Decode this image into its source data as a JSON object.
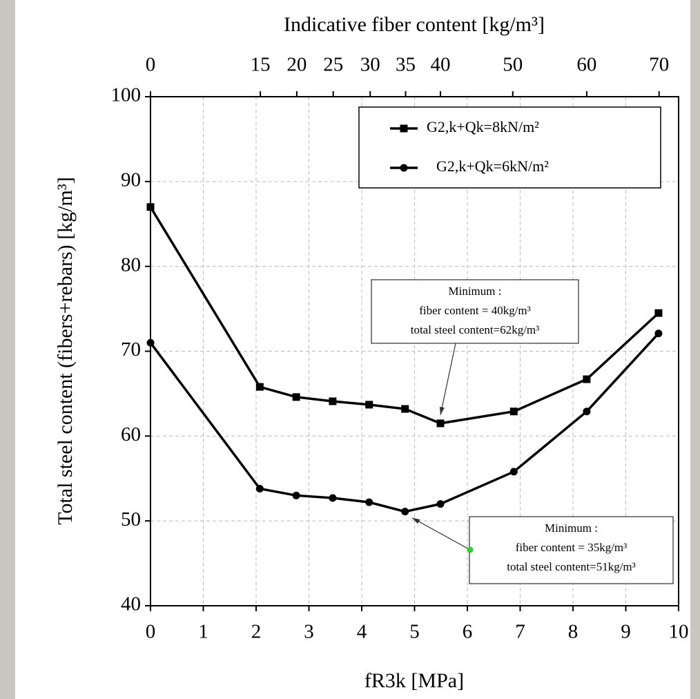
{
  "chart_data": {
    "type": "line",
    "x_label": "fR3k [MPa]",
    "y_label": "Total steel content (fibers+rebars) [kg/m³]",
    "x2_label": "Indicative fiber content [kg/m³]",
    "x": [
      0,
      2.07,
      2.76,
      3.45,
      4.14,
      4.82,
      5.49,
      6.88,
      8.26,
      9.62
    ],
    "series": [
      {
        "name": "G2,k+Qk=8kN/m²",
        "color": "#000000",
        "marker": "square",
        "values": [
          87,
          65.8,
          64.6,
          64.1,
          63.7,
          63.2,
          61.5,
          62.9,
          66.7,
          74.5
        ]
      },
      {
        "name": "G2,k+Qk=6kN/m²",
        "color": "#000000",
        "marker": "circle",
        "values": [
          71,
          53.8,
          53,
          52.7,
          52.2,
          51.1,
          52,
          55.8,
          62.9,
          72.1
        ]
      }
    ],
    "xlim": [
      0,
      10
    ],
    "xticks": [
      0,
      1,
      2,
      3,
      4,
      5,
      6,
      7,
      8,
      9,
      10
    ],
    "ylim": [
      40,
      100
    ],
    "yticks": [
      40,
      50,
      60,
      70,
      80,
      90,
      100
    ],
    "x2ticks": [
      {
        "value": 0,
        "label": "0"
      },
      {
        "value": 2.08,
        "label": "15"
      },
      {
        "value": 2.77,
        "label": "20"
      },
      {
        "value": 3.46,
        "label": "25"
      },
      {
        "value": 4.16,
        "label": "30"
      },
      {
        "value": 4.83,
        "label": "35"
      },
      {
        "value": 5.49,
        "label": "40"
      },
      {
        "value": 6.86,
        "label": "50"
      },
      {
        "value": 8.26,
        "label": "60"
      },
      {
        "value": 9.63,
        "label": "70"
      }
    ],
    "grid": true,
    "legend": "upper right",
    "annotations": [
      {
        "lines": [
          "Minimum :",
          "fiber content = 40kg/m³",
          "total steel content=62kg/m³"
        ]
      },
      {
        "lines": [
          "Minimum :",
          "fiber content = 35kg/m³",
          "total steel content=51kg/m³"
        ]
      }
    ]
  }
}
